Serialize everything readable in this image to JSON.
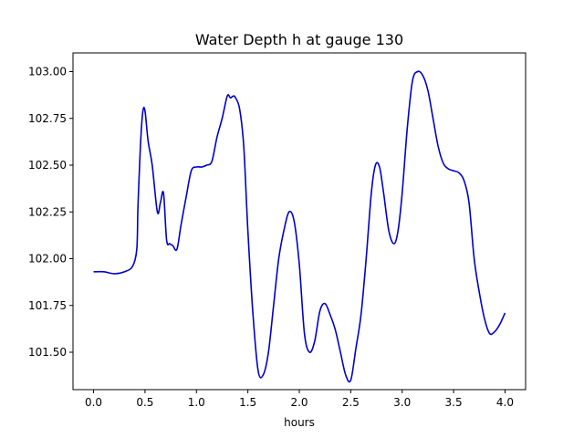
{
  "chart_data": {
    "type": "line",
    "title": "Water Depth h at gauge 130",
    "xlabel": "hours",
    "ylabel": "",
    "xlim": [
      -0.2,
      4.2
    ],
    "ylim": [
      101.3,
      103.1
    ],
    "xticks": [
      0.0,
      0.5,
      1.0,
      1.5,
      2.0,
      2.5,
      3.0,
      3.5,
      4.0
    ],
    "xtick_labels": [
      "0.0",
      "0.5",
      "1.0",
      "1.5",
      "2.0",
      "2.5",
      "3.0",
      "3.5",
      "4.0"
    ],
    "yticks": [
      101.5,
      101.75,
      102.0,
      102.25,
      102.5,
      102.75,
      103.0
    ],
    "ytick_labels": [
      "101.50",
      "101.75",
      "102.00",
      "102.25",
      "102.50",
      "102.75",
      "103.00"
    ],
    "grid": false,
    "line_color": "#0000cc",
    "series": [
      {
        "x": [
          0.0,
          0.1,
          0.2,
          0.3,
          0.38,
          0.42,
          0.43,
          0.44,
          0.46,
          0.48,
          0.5,
          0.53,
          0.57,
          0.62,
          0.65,
          0.68,
          0.71,
          0.74,
          0.77,
          0.81,
          0.85,
          0.9,
          0.95,
          1.0,
          1.05,
          1.1,
          1.15,
          1.2,
          1.25,
          1.3,
          1.33,
          1.36,
          1.38,
          1.42,
          1.46,
          1.5,
          1.55,
          1.6,
          1.65,
          1.7,
          1.75,
          1.8,
          1.85,
          1.9,
          1.95,
          2.0,
          2.05,
          2.1,
          2.15,
          2.2,
          2.25,
          2.3,
          2.35,
          2.4,
          2.45,
          2.5,
          2.55,
          2.6,
          2.65,
          2.7,
          2.74,
          2.78,
          2.82,
          2.87,
          2.92,
          2.96,
          3.0,
          3.05,
          3.1,
          3.15,
          3.2,
          3.25,
          3.3,
          3.35,
          3.4,
          3.45,
          3.5,
          3.55,
          3.6,
          3.65,
          3.7,
          3.75,
          3.8,
          3.85,
          3.9,
          3.95,
          4.0
        ],
        "y": [
          101.93,
          101.93,
          101.92,
          101.93,
          101.96,
          102.05,
          102.25,
          102.4,
          102.65,
          102.79,
          102.79,
          102.63,
          102.5,
          102.25,
          102.3,
          102.35,
          102.1,
          102.08,
          102.07,
          102.05,
          102.18,
          102.33,
          102.47,
          102.49,
          102.49,
          102.5,
          102.52,
          102.65,
          102.75,
          102.87,
          102.86,
          102.87,
          102.86,
          102.8,
          102.6,
          102.15,
          101.7,
          101.4,
          101.38,
          101.5,
          101.75,
          102.0,
          102.15,
          102.25,
          102.2,
          101.97,
          101.6,
          101.5,
          101.56,
          101.72,
          101.76,
          101.7,
          101.62,
          101.5,
          101.38,
          101.35,
          101.52,
          101.7,
          102.0,
          102.35,
          102.5,
          102.49,
          102.35,
          102.15,
          102.08,
          102.15,
          102.35,
          102.7,
          102.95,
          103.0,
          102.98,
          102.9,
          102.75,
          102.6,
          102.51,
          102.48,
          102.47,
          102.46,
          102.42,
          102.3,
          102.0,
          101.82,
          101.68,
          101.6,
          101.61,
          101.65,
          101.71
        ]
      }
    ]
  }
}
